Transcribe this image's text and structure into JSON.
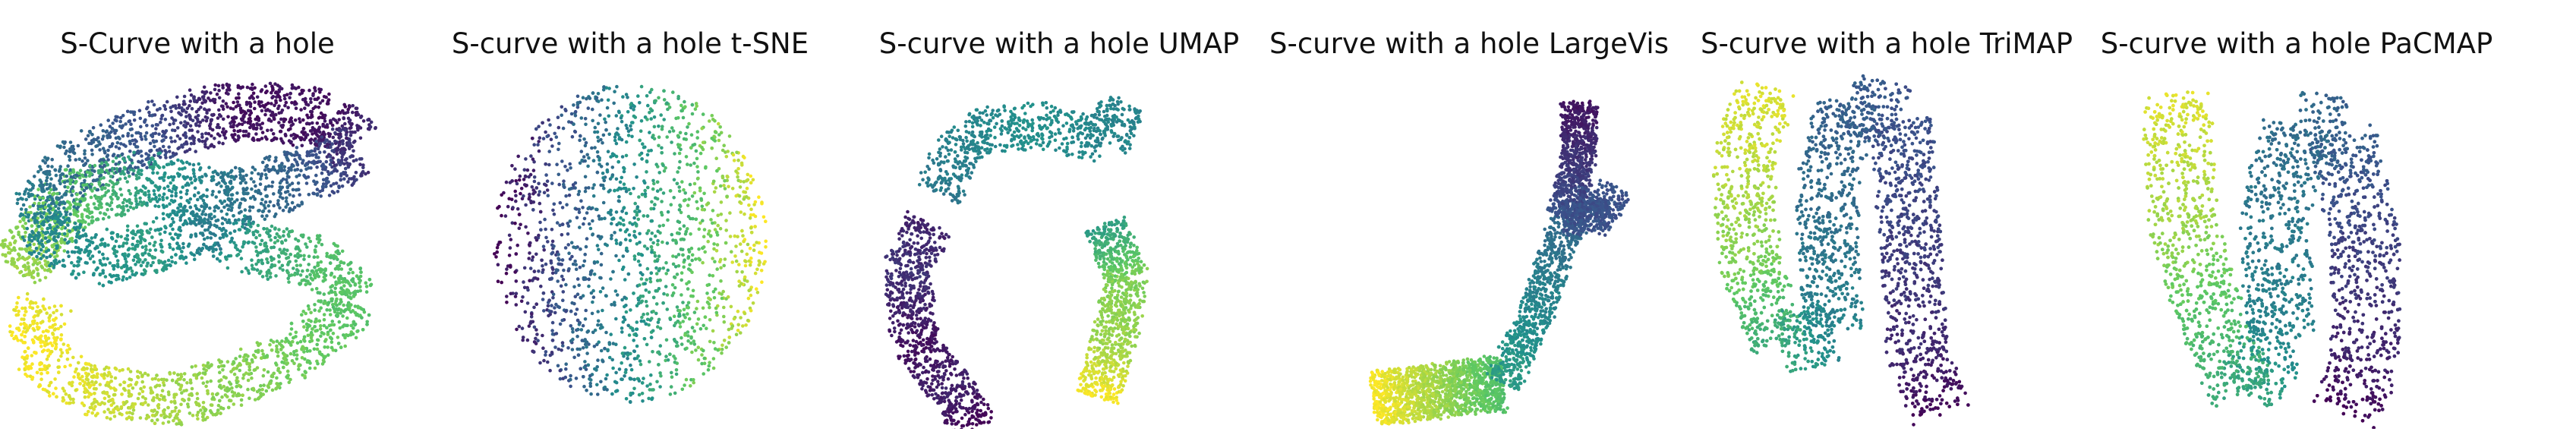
{
  "chart_data": [
    {
      "type": "scatter",
      "title": "S-Curve with a hole",
      "colormap": "viridis",
      "grid": false,
      "axes_visible": false
    },
    {
      "type": "scatter",
      "title": "S-curve with a hole t-SNE",
      "colormap": "viridis",
      "grid": false,
      "axes_visible": false
    },
    {
      "type": "scatter",
      "title": "S-curve with a hole UMAP",
      "colormap": "viridis",
      "grid": false,
      "axes_visible": false
    },
    {
      "type": "scatter",
      "title": "S-curve with a hole LargeVis",
      "colormap": "viridis",
      "grid": false,
      "axes_visible": false
    },
    {
      "type": "scatter",
      "title": "S-curve with a hole TriMAP",
      "colormap": "viridis",
      "grid": false,
      "axes_visible": false
    },
    {
      "type": "scatter",
      "title": "S-curve with a hole PaCMAP",
      "colormap": "viridis",
      "grid": false,
      "axes_visible": false
    }
  ]
}
